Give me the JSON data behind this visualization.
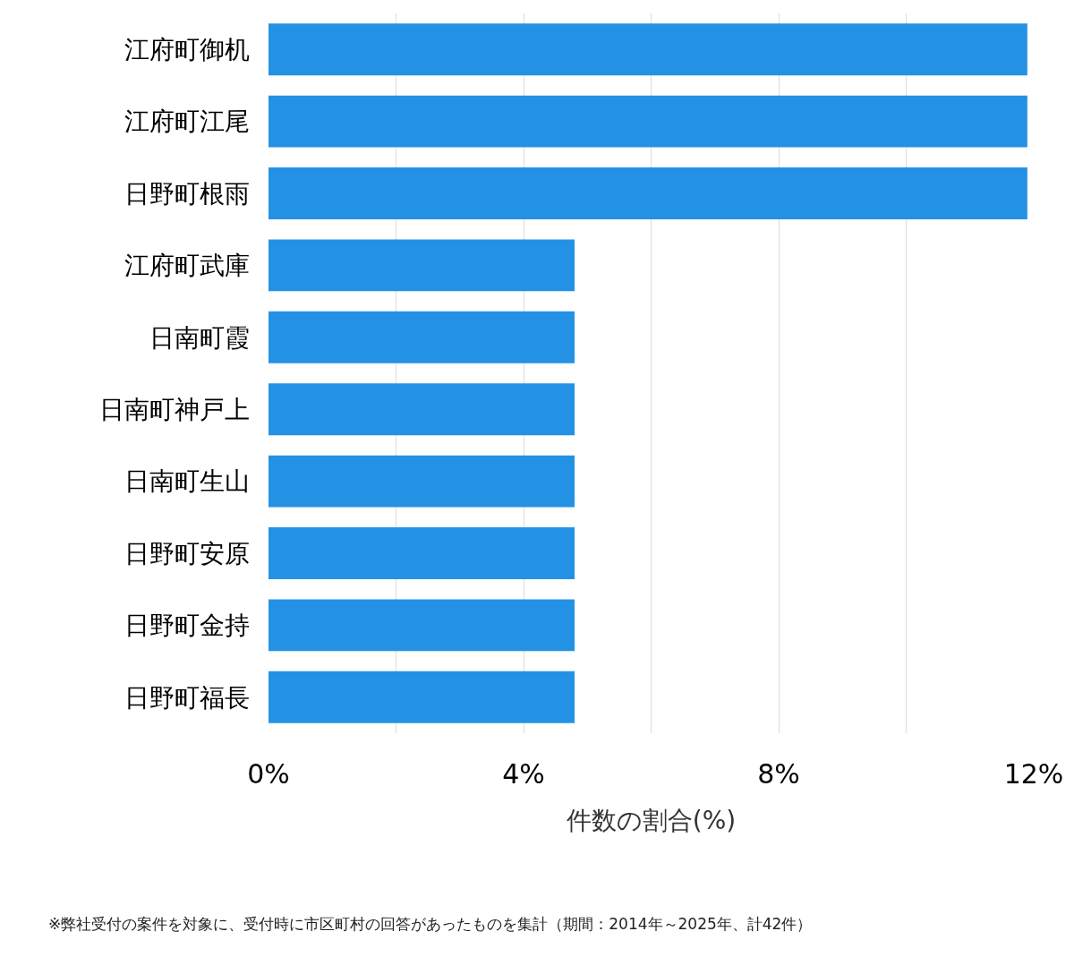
{
  "chart_data": {
    "type": "bar",
    "orientation": "horizontal",
    "xlabel": "件数の割合(%)",
    "categories": [
      "江府町御机",
      "江府町江尾",
      "日野町根雨",
      "江府町武庫",
      "日南町霞",
      "日南町神戸上",
      "日南町生山",
      "日野町安原",
      "日野町金持",
      "日野町福長"
    ],
    "values": [
      11.9,
      11.9,
      11.9,
      4.8,
      4.8,
      4.8,
      4.8,
      4.8,
      4.8,
      4.8
    ],
    "color": "#2492e4",
    "xlim": [
      0,
      12
    ],
    "xticks": [
      {
        "value": 0,
        "label": "0%"
      },
      {
        "value": 2,
        "label": null
      },
      {
        "value": 4,
        "label": "4%"
      },
      {
        "value": 6,
        "label": null
      },
      {
        "value": 8,
        "label": "8%"
      },
      {
        "value": 10,
        "label": null
      },
      {
        "value": 12,
        "label": "12%"
      }
    ],
    "grid": "x",
    "annotations": [
      "※弊社受付の案件を対象に、受付時に市区町村の回答があったものを集計（期間：2014年～2025年、計42件）"
    ]
  }
}
